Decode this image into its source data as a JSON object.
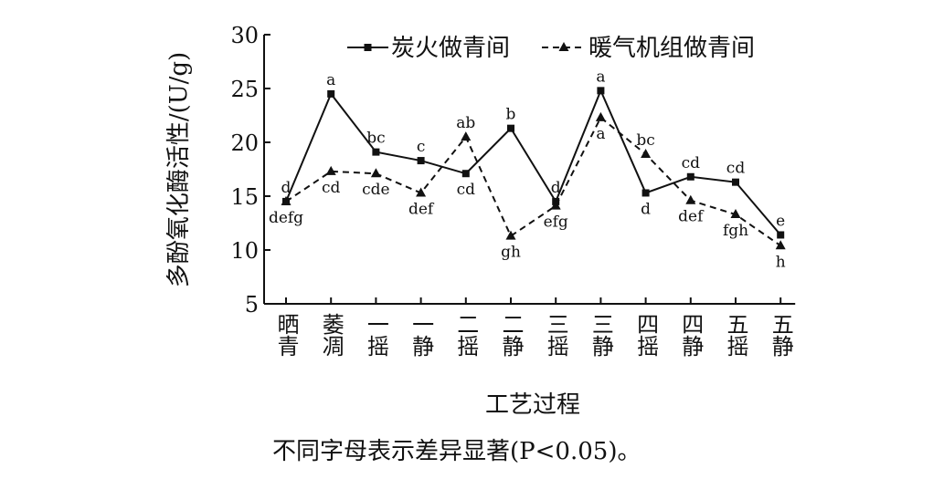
{
  "chart_data": {
    "type": "line",
    "ylabel": "多酚氧化酶活性/(U/g)",
    "xlabel": "工艺过程",
    "ylim": [
      5,
      30
    ],
    "yticks": [
      5,
      10,
      15,
      20,
      25,
      30
    ],
    "grid": false,
    "legend_position": "top-right",
    "categories": [
      "晒青",
      "萎凋",
      "一摇",
      "一静",
      "二摇",
      "二静",
      "三摇",
      "三静",
      "四摇",
      "四静",
      "五摇",
      "五静"
    ],
    "series": [
      {
        "name": "炭火做青间",
        "style": "solid",
        "marker": "square",
        "values": [
          14.5,
          24.5,
          19.1,
          18.3,
          17.1,
          21.3,
          14.5,
          24.8,
          15.3,
          16.8,
          16.3,
          11.4
        ],
        "labels": [
          "d",
          "a",
          "bc",
          "c",
          "cd",
          "b",
          "d",
          "a",
          "d",
          "cd",
          "cd",
          "e"
        ],
        "label_position": [
          "above",
          "above",
          "above",
          "above",
          "below",
          "above",
          "above",
          "above",
          "below",
          "above",
          "above",
          "above"
        ]
      },
      {
        "name": "暖气机组做青间",
        "style": "dashed",
        "marker": "triangle",
        "values": [
          14.5,
          17.3,
          17.1,
          15.3,
          20.5,
          11.3,
          14.1,
          22.3,
          18.9,
          14.6,
          13.3,
          10.4
        ],
        "labels": [
          "defg",
          "cd",
          "cde",
          "def",
          "ab",
          "gh",
          "efg",
          "a",
          "bc",
          "def",
          "fgh",
          "h"
        ],
        "label_position": [
          "below",
          "below",
          "below",
          "below",
          "above",
          "below",
          "below",
          "below",
          "above",
          "below",
          "below",
          "below"
        ]
      }
    ],
    "note": "不同字母表示差异显著(P<0.05)。"
  },
  "colors": {
    "line": "#111111",
    "background": "#ffffff"
  }
}
